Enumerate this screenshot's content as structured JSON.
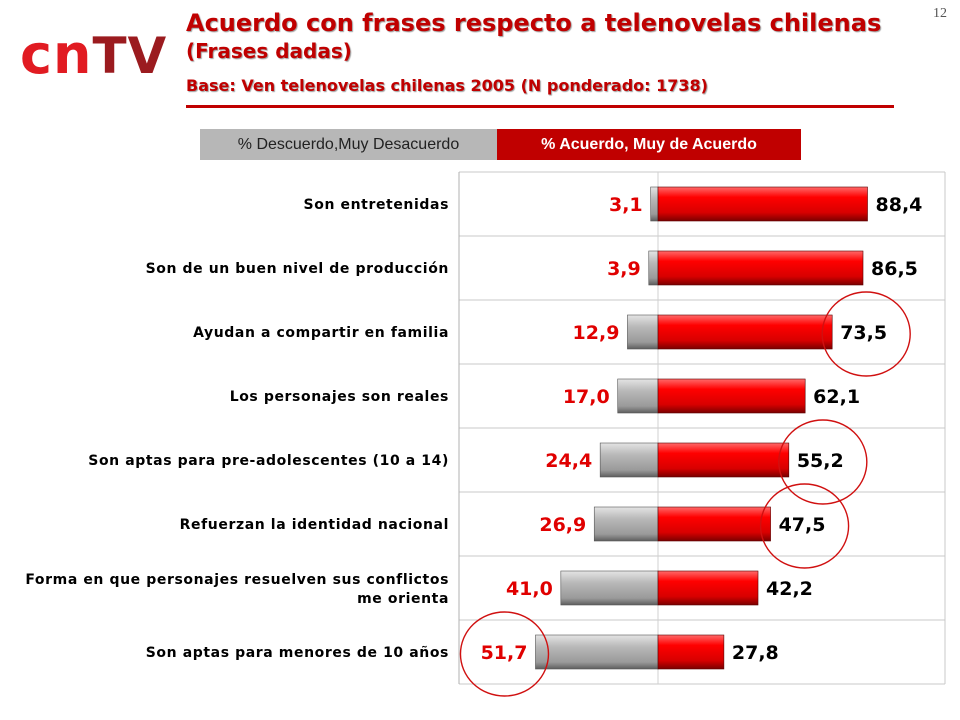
{
  "header": {
    "logo_cn": "cn",
    "logo_tv": "TV",
    "title": "Acuerdo con frases respecto a telenovelas chilenas",
    "subtitle": "(Frases dadas)",
    "base": "Base: Ven telenovelas chilenas 2005 (N ponderado: 1738)",
    "page_number": "12"
  },
  "legend": {
    "disagree": "% Descuerdo,Muy Desacuerdo",
    "agree": "% Acuerdo, Muy de Acuerdo"
  },
  "colors": {
    "title": "#c00000",
    "agree_bar": "#e00000",
    "disagree_bar": "#a6a6a6",
    "disagree_value": "#e00000",
    "agree_value": "#000000",
    "highlight_circle": "#d01010"
  },
  "chart_data": {
    "type": "bar",
    "orientation": "horizontal-diverging",
    "categories": [
      "Son entretenidas",
      "Son de un buen nivel de producción",
      "Ayudan a compartir en familia",
      "Los personajes son reales",
      "Son aptas para pre-adolescentes (10 a 14)",
      "Refuerzan la identidad nacional",
      "Forma en que  personajes resuelven sus conflictos\nme orienta",
      "Son aptas para menores de 10 años"
    ],
    "series": [
      {
        "name": "% Descuerdo,Muy Desacuerdo",
        "values": [
          3.1,
          3.9,
          12.9,
          17.0,
          24.4,
          26.9,
          41.0,
          51.7
        ]
      },
      {
        "name": "% Acuerdo, Muy de Acuerdo",
        "values": [
          88.4,
          86.5,
          73.5,
          62.1,
          55.2,
          47.5,
          42.2,
          27.8
        ]
      }
    ],
    "value_labels": {
      "disagree": [
        "3,1",
        "3,9",
        "12,9",
        "17,0",
        "24,4",
        "26,9",
        "41,0",
        "51,7"
      ],
      "agree": [
        "88,4",
        "86,5",
        "73,5",
        "62,1",
        "55,2",
        "47,5",
        "42,2",
        "27,8"
      ]
    },
    "highlighted": [
      {
        "series": "agree",
        "index": 2
      },
      {
        "series": "agree",
        "index": 4
      },
      {
        "series": "agree",
        "index": 5
      },
      {
        "series": "disagree",
        "index": 7
      }
    ],
    "grid": "horizontal row separators",
    "legend_position": "top"
  }
}
